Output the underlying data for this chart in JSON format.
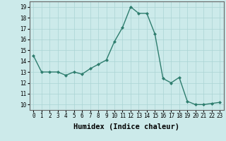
{
  "x": [
    0,
    1,
    2,
    3,
    4,
    5,
    6,
    7,
    8,
    9,
    10,
    11,
    12,
    13,
    14,
    15,
    16,
    17,
    18,
    19,
    20,
    21,
    22,
    23
  ],
  "y": [
    14.5,
    13.0,
    13.0,
    13.0,
    12.7,
    13.0,
    12.8,
    13.3,
    13.7,
    14.1,
    15.8,
    17.1,
    19.0,
    18.4,
    18.4,
    16.5,
    12.4,
    12.0,
    12.5,
    10.3,
    10.0,
    10.0,
    10.1,
    10.2
  ],
  "line_color": "#2e7d6e",
  "marker": "D",
  "marker_size": 2.0,
  "xlabel": "Humidex (Indice chaleur)",
  "xlim": [
    -0.5,
    23.5
  ],
  "ylim": [
    9.5,
    19.5
  ],
  "yticks": [
    10,
    11,
    12,
    13,
    14,
    15,
    16,
    17,
    18,
    19
  ],
  "xticks": [
    0,
    1,
    2,
    3,
    4,
    5,
    6,
    7,
    8,
    9,
    10,
    11,
    12,
    13,
    14,
    15,
    16,
    17,
    18,
    19,
    20,
    21,
    22,
    23
  ],
  "bg_color": "#cceaea",
  "grid_color": "#aad4d4",
  "tick_fontsize": 5.5,
  "xlabel_fontsize": 7.5,
  "linewidth": 1.0
}
